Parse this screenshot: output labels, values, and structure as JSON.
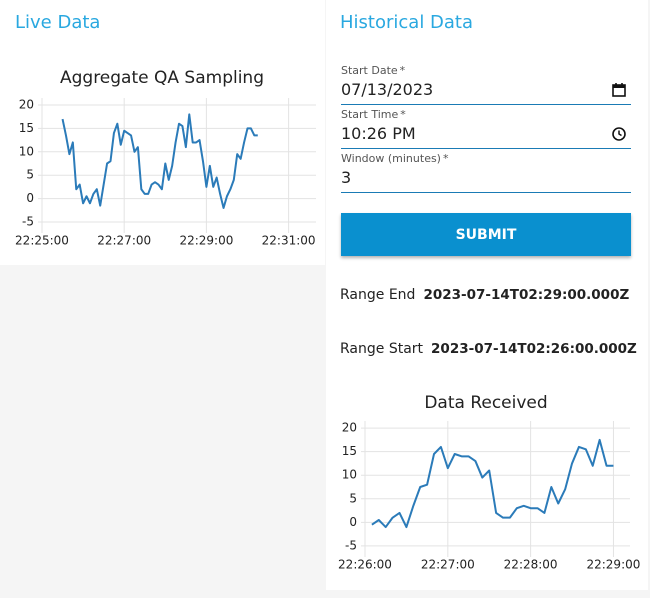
{
  "live": {
    "title": "Live Data"
  },
  "historical": {
    "title": "Historical Data",
    "required_mark": "*",
    "fields": [
      {
        "label": "Start Date",
        "value": "07/13/2023"
      },
      {
        "label": "Start Time",
        "value": "10:26 PM"
      },
      {
        "label": "Window (minutes)",
        "value": "3"
      }
    ],
    "button": "SUBMIT",
    "range_end": {
      "label": "Range End",
      "value": "2023-07-14T02:29:00.000Z"
    },
    "range_start": {
      "label": "Range Start",
      "value": "2023-07-14T02:26:00.000Z"
    }
  },
  "chart_data": [
    {
      "type": "line",
      "title": "Aggregate QA Sampling",
      "color": "#2b7bb9",
      "grid": true,
      "x": [
        "22:25:30",
        "22:25:35",
        "22:25:40",
        "22:25:45",
        "22:25:50",
        "22:25:55",
        "22:26:00",
        "22:26:05",
        "22:26:10",
        "22:26:15",
        "22:26:20",
        "22:26:25",
        "22:26:30",
        "22:26:35",
        "22:26:40",
        "22:26:45",
        "22:26:50",
        "22:26:55",
        "22:27:00",
        "22:27:05",
        "22:27:10",
        "22:27:15",
        "22:27:20",
        "22:27:25",
        "22:27:30",
        "22:27:35",
        "22:27:40",
        "22:27:45",
        "22:27:50",
        "22:27:55",
        "22:28:00",
        "22:28:05",
        "22:28:10",
        "22:28:15",
        "22:28:20",
        "22:28:25",
        "22:28:30",
        "22:28:35",
        "22:28:40",
        "22:28:45",
        "22:28:50",
        "22:28:55",
        "22:29:00",
        "22:29:05",
        "22:29:10",
        "22:29:15",
        "22:29:20",
        "22:29:25",
        "22:29:30",
        "22:29:35",
        "22:29:40",
        "22:29:45",
        "22:29:50",
        "22:29:55",
        "22:30:00",
        "22:30:05",
        "22:30:10",
        "22:30:15"
      ],
      "values": [
        17,
        13.5,
        9.5,
        12,
        2,
        3,
        -1,
        0.5,
        -1,
        1,
        2,
        -1.5,
        3,
        7.5,
        8,
        14,
        16,
        11.5,
        14.5,
        14,
        13.5,
        10,
        11,
        2,
        1,
        1,
        3,
        3.5,
        3,
        2,
        7.5,
        4,
        7,
        12,
        16,
        15.5,
        11,
        18,
        12,
        12,
        12.5,
        8,
        2.5,
        7,
        2.5,
        4.5,
        1,
        -2,
        0.5,
        2,
        4,
        9.5,
        8.5,
        12,
        15,
        15,
        13.5,
        13.5
      ],
      "xlim": [
        "22:25:00",
        "22:31:40"
      ],
      "xticks": [
        "22:25:00",
        "22:27:00",
        "22:29:00",
        "22:31:00"
      ],
      "ylim": [
        -6.5,
        21.5
      ],
      "yticks": [
        20,
        15,
        10,
        5,
        0,
        -5
      ]
    },
    {
      "type": "line",
      "title": "Data Received",
      "color": "#2b7bb9",
      "grid": true,
      "x": [
        "22:26:05",
        "22:26:10",
        "22:26:15",
        "22:26:20",
        "22:26:25",
        "22:26:30",
        "22:26:35",
        "22:26:40",
        "22:26:45",
        "22:26:50",
        "22:26:55",
        "22:27:00",
        "22:27:05",
        "22:27:10",
        "22:27:15",
        "22:27:20",
        "22:27:25",
        "22:27:30",
        "22:27:35",
        "22:27:40",
        "22:27:45",
        "22:27:50",
        "22:27:55",
        "22:28:00",
        "22:28:05",
        "22:28:10",
        "22:28:15",
        "22:28:20",
        "22:28:25",
        "22:28:30",
        "22:28:35",
        "22:28:40",
        "22:28:45",
        "22:28:50",
        "22:28:55",
        "22:29:00"
      ],
      "values": [
        -0.5,
        0.5,
        -1,
        1,
        2,
        -1,
        3.5,
        7.5,
        8,
        14.5,
        16,
        11.5,
        14.5,
        14,
        14,
        13,
        9.5,
        11,
        2,
        1,
        1,
        3,
        3.5,
        3,
        3,
        2,
        7.5,
        4,
        7,
        12.5,
        16,
        15.5,
        12,
        17.5,
        12,
        12
      ],
      "xlim": [
        "22:26:00",
        "22:29:12"
      ],
      "xticks": [
        "22:26:00",
        "22:27:00",
        "22:28:00",
        "22:29:00"
      ],
      "ylim": [
        -6.5,
        21.5
      ],
      "yticks": [
        20,
        15,
        10,
        5,
        0,
        -5
      ]
    }
  ]
}
